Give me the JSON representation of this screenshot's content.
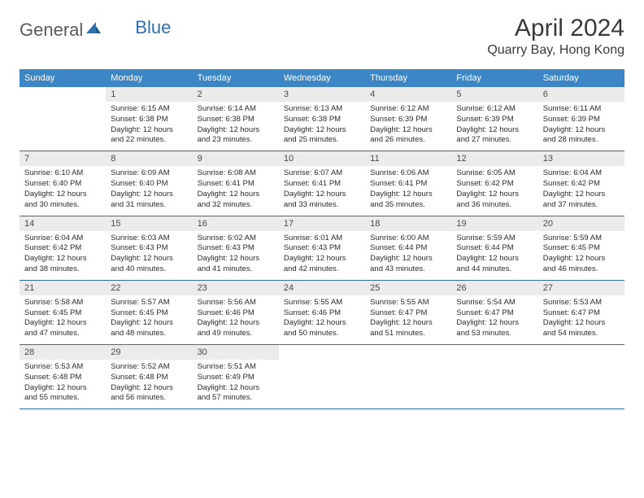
{
  "logo": {
    "general": "General",
    "blue": "Blue",
    "tri_color": "#2f6fb0"
  },
  "title": "April 2024",
  "location": "Quarry Bay, Hong Kong",
  "colors": {
    "header_bg": "#3d86c6",
    "header_text": "#ffffff",
    "daynum_bg": "#ebebeb",
    "week_border": "#2f6fb0",
    "body_text": "#2b2b2b"
  },
  "weekdays": [
    "Sunday",
    "Monday",
    "Tuesday",
    "Wednesday",
    "Thursday",
    "Friday",
    "Saturday"
  ],
  "weeks": [
    [
      {
        "n": "",
        "sr": "",
        "ss": "",
        "dl1": "",
        "dl2": ""
      },
      {
        "n": "1",
        "sr": "Sunrise: 6:15 AM",
        "ss": "Sunset: 6:38 PM",
        "dl1": "Daylight: 12 hours",
        "dl2": "and 22 minutes."
      },
      {
        "n": "2",
        "sr": "Sunrise: 6:14 AM",
        "ss": "Sunset: 6:38 PM",
        "dl1": "Daylight: 12 hours",
        "dl2": "and 23 minutes."
      },
      {
        "n": "3",
        "sr": "Sunrise: 6:13 AM",
        "ss": "Sunset: 6:38 PM",
        "dl1": "Daylight: 12 hours",
        "dl2": "and 25 minutes."
      },
      {
        "n": "4",
        "sr": "Sunrise: 6:12 AM",
        "ss": "Sunset: 6:39 PM",
        "dl1": "Daylight: 12 hours",
        "dl2": "and 26 minutes."
      },
      {
        "n": "5",
        "sr": "Sunrise: 6:12 AM",
        "ss": "Sunset: 6:39 PM",
        "dl1": "Daylight: 12 hours",
        "dl2": "and 27 minutes."
      },
      {
        "n": "6",
        "sr": "Sunrise: 6:11 AM",
        "ss": "Sunset: 6:39 PM",
        "dl1": "Daylight: 12 hours",
        "dl2": "and 28 minutes."
      }
    ],
    [
      {
        "n": "7",
        "sr": "Sunrise: 6:10 AM",
        "ss": "Sunset: 6:40 PM",
        "dl1": "Daylight: 12 hours",
        "dl2": "and 30 minutes."
      },
      {
        "n": "8",
        "sr": "Sunrise: 6:09 AM",
        "ss": "Sunset: 6:40 PM",
        "dl1": "Daylight: 12 hours",
        "dl2": "and 31 minutes."
      },
      {
        "n": "9",
        "sr": "Sunrise: 6:08 AM",
        "ss": "Sunset: 6:41 PM",
        "dl1": "Daylight: 12 hours",
        "dl2": "and 32 minutes."
      },
      {
        "n": "10",
        "sr": "Sunrise: 6:07 AM",
        "ss": "Sunset: 6:41 PM",
        "dl1": "Daylight: 12 hours",
        "dl2": "and 33 minutes."
      },
      {
        "n": "11",
        "sr": "Sunrise: 6:06 AM",
        "ss": "Sunset: 6:41 PM",
        "dl1": "Daylight: 12 hours",
        "dl2": "and 35 minutes."
      },
      {
        "n": "12",
        "sr": "Sunrise: 6:05 AM",
        "ss": "Sunset: 6:42 PM",
        "dl1": "Daylight: 12 hours",
        "dl2": "and 36 minutes."
      },
      {
        "n": "13",
        "sr": "Sunrise: 6:04 AM",
        "ss": "Sunset: 6:42 PM",
        "dl1": "Daylight: 12 hours",
        "dl2": "and 37 minutes."
      }
    ],
    [
      {
        "n": "14",
        "sr": "Sunrise: 6:04 AM",
        "ss": "Sunset: 6:42 PM",
        "dl1": "Daylight: 12 hours",
        "dl2": "and 38 minutes."
      },
      {
        "n": "15",
        "sr": "Sunrise: 6:03 AM",
        "ss": "Sunset: 6:43 PM",
        "dl1": "Daylight: 12 hours",
        "dl2": "and 40 minutes."
      },
      {
        "n": "16",
        "sr": "Sunrise: 6:02 AM",
        "ss": "Sunset: 6:43 PM",
        "dl1": "Daylight: 12 hours",
        "dl2": "and 41 minutes."
      },
      {
        "n": "17",
        "sr": "Sunrise: 6:01 AM",
        "ss": "Sunset: 6:43 PM",
        "dl1": "Daylight: 12 hours",
        "dl2": "and 42 minutes."
      },
      {
        "n": "18",
        "sr": "Sunrise: 6:00 AM",
        "ss": "Sunset: 6:44 PM",
        "dl1": "Daylight: 12 hours",
        "dl2": "and 43 minutes."
      },
      {
        "n": "19",
        "sr": "Sunrise: 5:59 AM",
        "ss": "Sunset: 6:44 PM",
        "dl1": "Daylight: 12 hours",
        "dl2": "and 44 minutes."
      },
      {
        "n": "20",
        "sr": "Sunrise: 5:59 AM",
        "ss": "Sunset: 6:45 PM",
        "dl1": "Daylight: 12 hours",
        "dl2": "and 46 minutes."
      }
    ],
    [
      {
        "n": "21",
        "sr": "Sunrise: 5:58 AM",
        "ss": "Sunset: 6:45 PM",
        "dl1": "Daylight: 12 hours",
        "dl2": "and 47 minutes."
      },
      {
        "n": "22",
        "sr": "Sunrise: 5:57 AM",
        "ss": "Sunset: 6:45 PM",
        "dl1": "Daylight: 12 hours",
        "dl2": "and 48 minutes."
      },
      {
        "n": "23",
        "sr": "Sunrise: 5:56 AM",
        "ss": "Sunset: 6:46 PM",
        "dl1": "Daylight: 12 hours",
        "dl2": "and 49 minutes."
      },
      {
        "n": "24",
        "sr": "Sunrise: 5:55 AM",
        "ss": "Sunset: 6:46 PM",
        "dl1": "Daylight: 12 hours",
        "dl2": "and 50 minutes."
      },
      {
        "n": "25",
        "sr": "Sunrise: 5:55 AM",
        "ss": "Sunset: 6:47 PM",
        "dl1": "Daylight: 12 hours",
        "dl2": "and 51 minutes."
      },
      {
        "n": "26",
        "sr": "Sunrise: 5:54 AM",
        "ss": "Sunset: 6:47 PM",
        "dl1": "Daylight: 12 hours",
        "dl2": "and 53 minutes."
      },
      {
        "n": "27",
        "sr": "Sunrise: 5:53 AM",
        "ss": "Sunset: 6:47 PM",
        "dl1": "Daylight: 12 hours",
        "dl2": "and 54 minutes."
      }
    ],
    [
      {
        "n": "28",
        "sr": "Sunrise: 5:53 AM",
        "ss": "Sunset: 6:48 PM",
        "dl1": "Daylight: 12 hours",
        "dl2": "and 55 minutes."
      },
      {
        "n": "29",
        "sr": "Sunrise: 5:52 AM",
        "ss": "Sunset: 6:48 PM",
        "dl1": "Daylight: 12 hours",
        "dl2": "and 56 minutes."
      },
      {
        "n": "30",
        "sr": "Sunrise: 5:51 AM",
        "ss": "Sunset: 6:49 PM",
        "dl1": "Daylight: 12 hours",
        "dl2": "and 57 minutes."
      },
      {
        "n": "",
        "sr": "",
        "ss": "",
        "dl1": "",
        "dl2": ""
      },
      {
        "n": "",
        "sr": "",
        "ss": "",
        "dl1": "",
        "dl2": ""
      },
      {
        "n": "",
        "sr": "",
        "ss": "",
        "dl1": "",
        "dl2": ""
      },
      {
        "n": "",
        "sr": "",
        "ss": "",
        "dl1": "",
        "dl2": ""
      }
    ]
  ]
}
